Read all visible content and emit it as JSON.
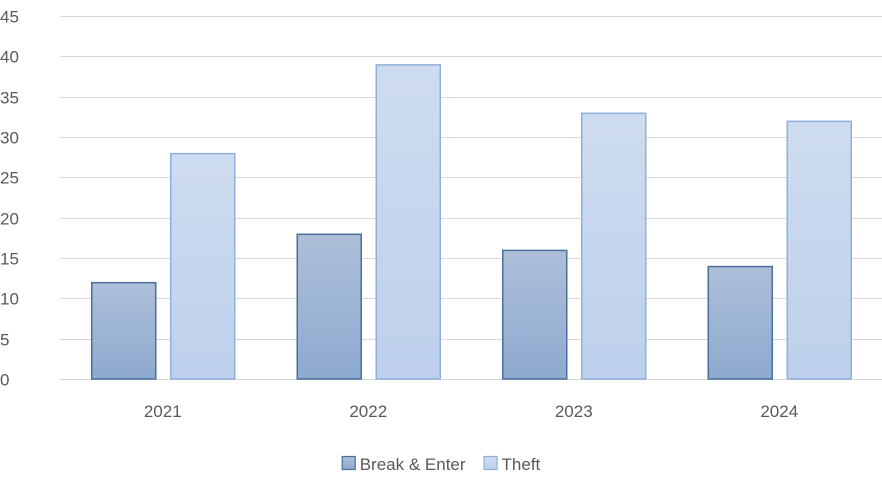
{
  "chart_data": {
    "type": "bar",
    "categories": [
      "2021",
      "2022",
      "2023",
      "2024"
    ],
    "series": [
      {
        "name": "Break & Enter",
        "values": [
          12,
          18,
          16,
          14
        ]
      },
      {
        "name": "Theft",
        "values": [
          28,
          39,
          33,
          32
        ]
      }
    ],
    "ylim": [
      0,
      45
    ],
    "yticks": [
      0,
      5,
      10,
      15,
      20,
      25,
      30,
      35,
      40,
      45
    ],
    "grid": true,
    "legend_position": "bottom",
    "colors": {
      "series_fill_top": [
        "#adbfd9",
        "#cfdcef"
      ],
      "series_fill_bottom": [
        "#8ea9cf",
        "#bdd0ec"
      ],
      "series_stroke": [
        "#4a6f9d",
        "#8eb0dd"
      ],
      "grid": "#d9d9d9",
      "text": "#595959"
    }
  }
}
